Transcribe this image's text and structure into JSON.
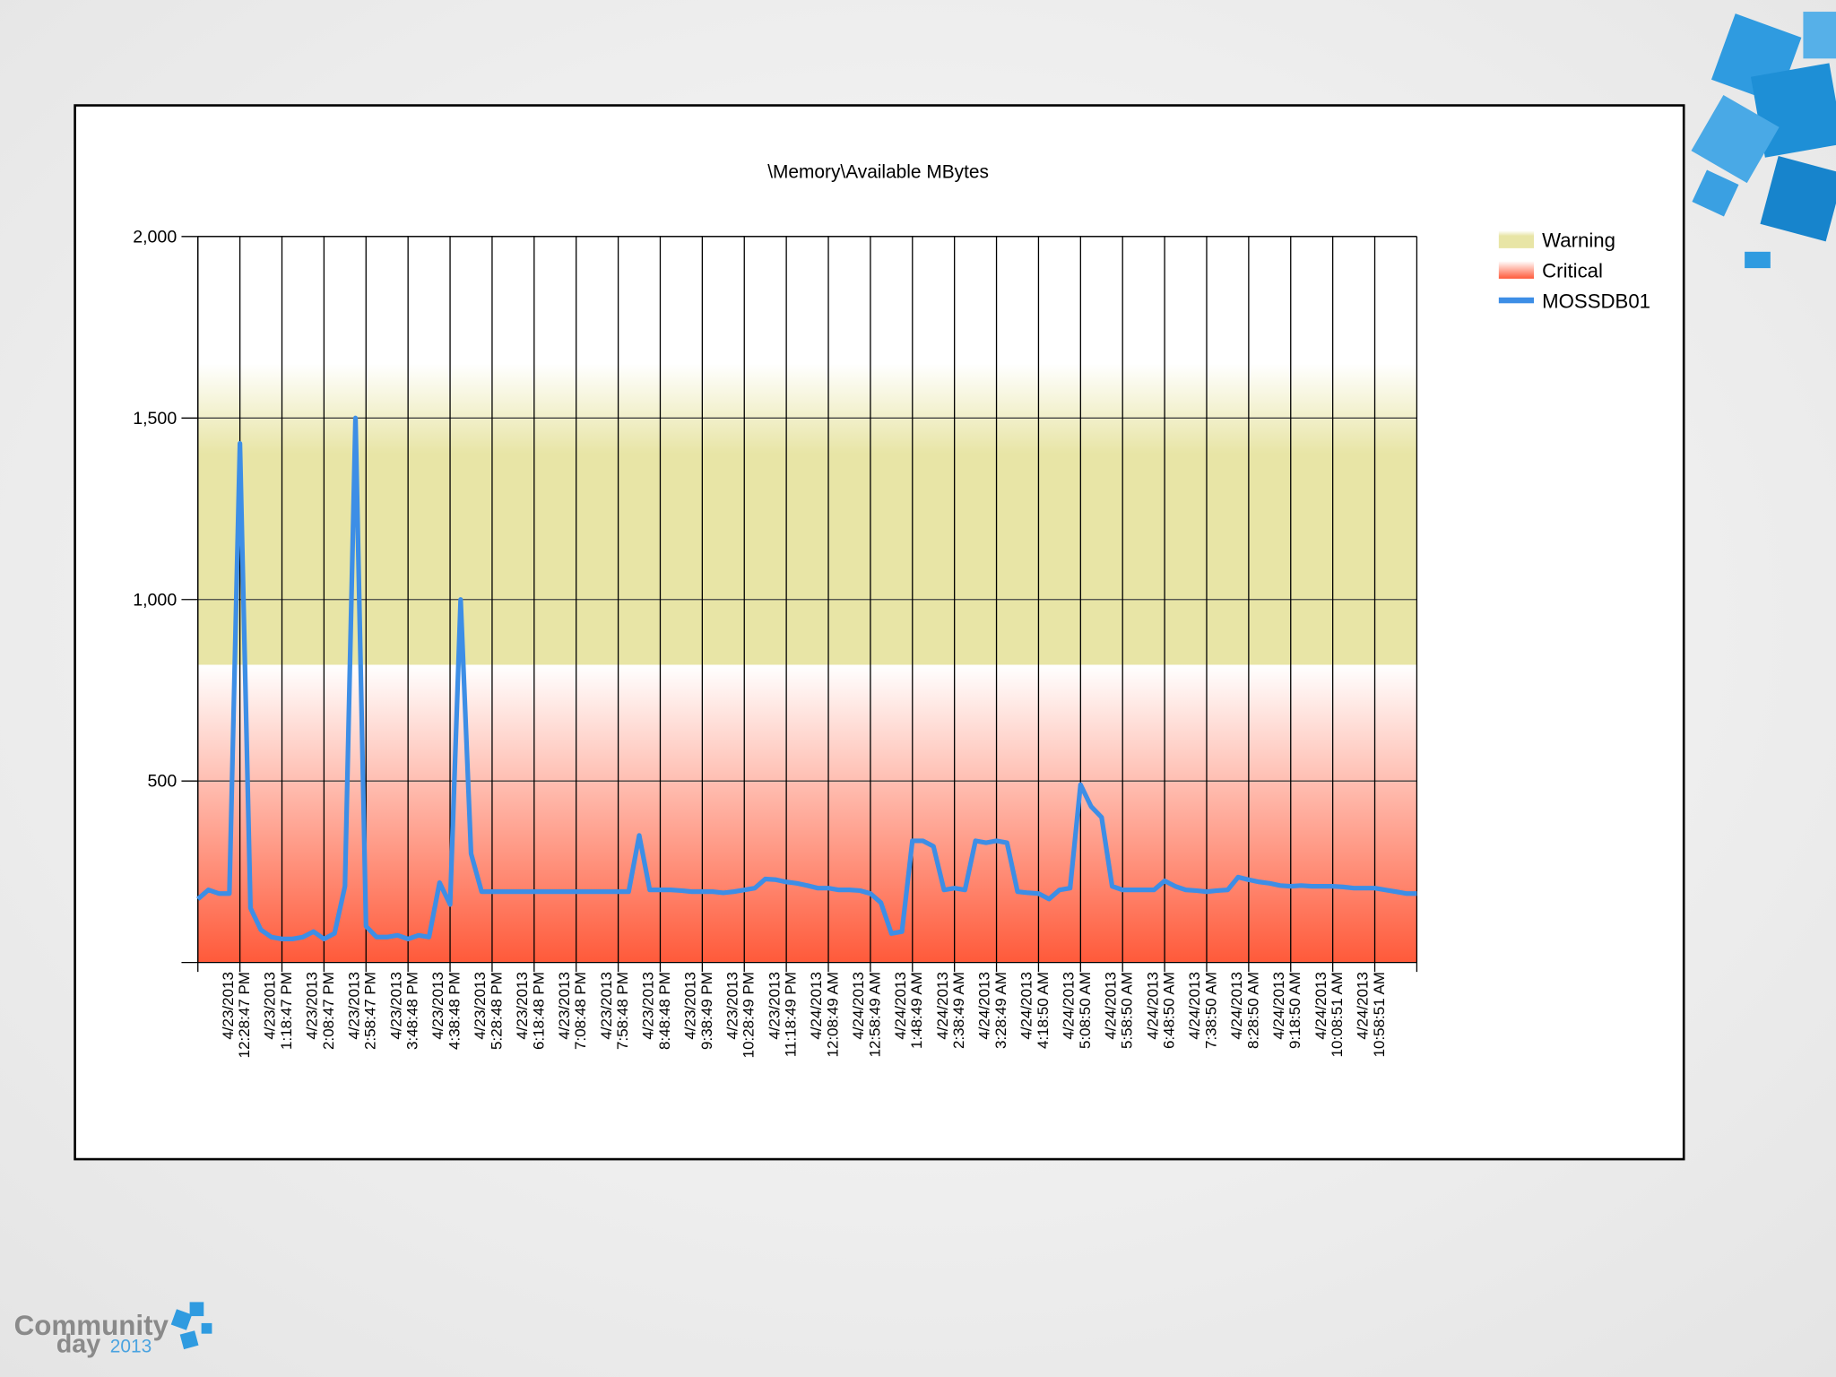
{
  "chart_data": {
    "type": "line",
    "title": "\\Memory\\Available MBytes",
    "categories": [
      null,
      null,
      null,
      null,
      "4/23/2013\n12:28:47 PM",
      null,
      null,
      null,
      "4/23/2013\n1:18:47 PM",
      null,
      null,
      null,
      "4/23/2013\n2:08:47 PM",
      null,
      null,
      null,
      "4/23/2013\n2:58:47 PM",
      null,
      null,
      null,
      "4/23/2013\n3:48:48 PM",
      null,
      null,
      null,
      "4/23/2013\n4:38:48 PM",
      null,
      null,
      null,
      "4/23/2013\n5:28:48 PM",
      null,
      null,
      null,
      "4/23/2013\n6:18:48 PM",
      null,
      null,
      null,
      "4/23/2013\n7:08:48 PM",
      null,
      null,
      null,
      "4/23/2013\n7:58:48 PM",
      null,
      null,
      null,
      "4/23/2013\n8:48:48 PM",
      null,
      null,
      null,
      "4/23/2013\n9:38:49 PM",
      null,
      null,
      null,
      "4/23/2013\n10:28:49 PM",
      null,
      null,
      null,
      "4/23/2013\n11:18:49 PM",
      null,
      null,
      null,
      "4/24/2013\n12:08:49 AM",
      null,
      null,
      null,
      "4/24/2013\n12:58:49 AM",
      null,
      null,
      null,
      "4/24/2013\n1:48:49 AM",
      null,
      null,
      null,
      "4/24/2013\n2:38:49 AM",
      null,
      null,
      null,
      "4/24/2013\n3:28:49 AM",
      null,
      null,
      null,
      "4/24/2013\n4:18:50 AM",
      null,
      null,
      null,
      "4/24/2013\n5:08:50 AM",
      null,
      null,
      null,
      "4/24/2013\n5:58:50 AM",
      null,
      null,
      null,
      "4/24/2013\n6:48:50 AM",
      null,
      null,
      null,
      "4/24/2013\n7:38:50 AM",
      null,
      null,
      null,
      "4/24/2013\n8:28:50 AM",
      null,
      null,
      null,
      "4/24/2013\n9:18:50 AM",
      null,
      null,
      null,
      "4/24/2013\n10:08:51 AM",
      null,
      null,
      null,
      "4/24/2013\n10:58:51 AM",
      null,
      null,
      null,
      null
    ],
    "series": [
      {
        "name": "MOSSDB01",
        "color": "#3d8ee6",
        "values": [
          175,
          200,
          190,
          190,
          1430,
          150,
          90,
          70,
          65,
          65,
          70,
          85,
          65,
          80,
          210,
          1500,
          100,
          70,
          70,
          75,
          65,
          75,
          70,
          220,
          160,
          1000,
          300,
          195,
          195,
          195,
          195,
          195,
          195,
          195,
          195,
          195,
          195,
          195,
          195,
          195,
          195,
          195,
          350,
          200,
          200,
          200,
          198,
          195,
          195,
          195,
          192,
          195,
          200,
          205,
          230,
          228,
          222,
          218,
          212,
          205,
          205,
          200,
          200,
          198,
          190,
          165,
          80,
          85,
          335,
          335,
          320,
          200,
          205,
          200,
          335,
          330,
          335,
          330,
          195,
          192,
          190,
          175,
          200,
          205,
          490,
          430,
          400,
          210,
          200,
          200,
          200,
          200,
          225,
          210,
          200,
          198,
          195,
          198,
          200,
          235,
          228,
          222,
          218,
          212,
          210,
          212,
          210,
          210,
          210,
          208,
          205,
          205,
          205,
          200,
          195,
          190,
          190
        ]
      }
    ],
    "bands": [
      {
        "name": "Warning",
        "color": "#e8e5a6",
        "range": [
          820,
          1650
        ]
      },
      {
        "name": "Critical",
        "color": "#ff5a3a",
        "range": [
          0,
          820
        ]
      }
    ],
    "ylim": [
      0,
      2000
    ],
    "yticks": [
      500,
      {
        "value": 1000,
        "label": "1,000"
      },
      {
        "value": 1500,
        "label": "1,500"
      },
      {
        "value": 2000,
        "label": "2,000"
      }
    ],
    "grid": true,
    "legend": "right"
  },
  "logo": {
    "word": "Community",
    "sub": "day",
    "year": "2013"
  }
}
